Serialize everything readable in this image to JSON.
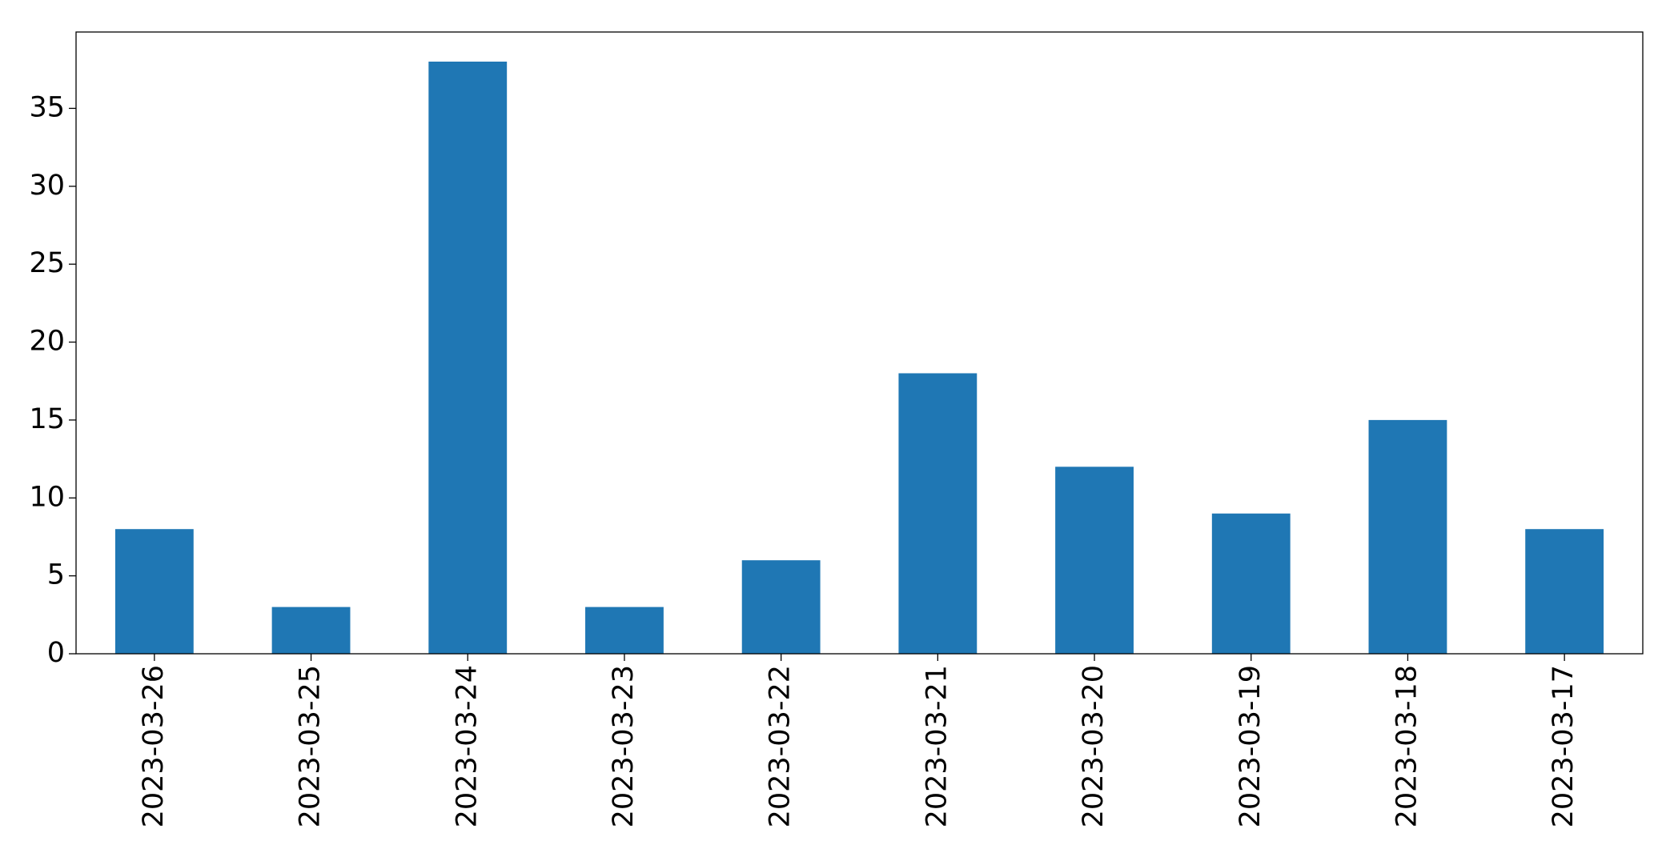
{
  "chart_data": {
    "type": "bar",
    "categories": [
      "2023-03-26",
      "2023-03-25",
      "2023-03-24",
      "2023-03-23",
      "2023-03-22",
      "2023-03-21",
      "2023-03-20",
      "2023-03-19",
      "2023-03-18",
      "2023-03-17"
    ],
    "values": [
      8,
      3,
      38,
      3,
      6,
      18,
      12,
      9,
      15,
      8
    ],
    "color": "#1f77b4",
    "ylim": [
      0,
      39.9
    ],
    "yticks": [
      0,
      5,
      10,
      15,
      20,
      25,
      30,
      35
    ],
    "grid": false
  }
}
